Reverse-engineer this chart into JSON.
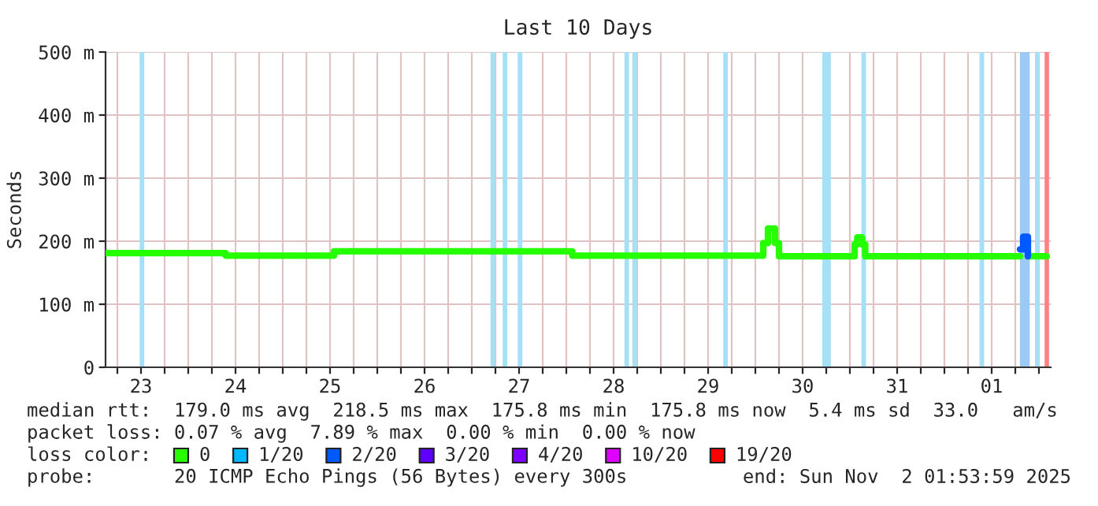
{
  "chart_data": {
    "type": "step",
    "title": "Last 10 Days",
    "ylabel": "Seconds",
    "xlim": [
      "2025-10-23T03:00",
      "2025-11-02T03:00"
    ],
    "xticks": [
      {
        "value": "2025-10-23T06:00",
        "label": null
      },
      {
        "value": "2025-10-23T12:00",
        "label": "23"
      },
      {
        "value": "2025-10-23T18:00",
        "label": null
      },
      {
        "value": "2025-10-24T00:00",
        "label": null
      },
      {
        "value": "2025-10-24T06:00",
        "label": null
      },
      {
        "value": "2025-10-24T12:00",
        "label": "24"
      },
      {
        "value": "2025-10-24T18:00",
        "label": null
      },
      {
        "value": "2025-10-25T00:00",
        "label": null
      },
      {
        "value": "2025-10-25T06:00",
        "label": null
      },
      {
        "value": "2025-10-25T12:00",
        "label": "25"
      },
      {
        "value": "2025-10-25T18:00",
        "label": null
      },
      {
        "value": "2025-10-26T00:00",
        "label": null
      },
      {
        "value": "2025-10-26T06:00",
        "label": null
      },
      {
        "value": "2025-10-26T12:00",
        "label": "26"
      },
      {
        "value": "2025-10-26T18:00",
        "label": null
      },
      {
        "value": "2025-10-27T00:00",
        "label": null
      },
      {
        "value": "2025-10-27T06:00",
        "label": null
      },
      {
        "value": "2025-10-27T12:00",
        "label": "27"
      },
      {
        "value": "2025-10-27T18:00",
        "label": null
      },
      {
        "value": "2025-10-28T00:00",
        "label": null
      },
      {
        "value": "2025-10-28T06:00",
        "label": null
      },
      {
        "value": "2025-10-28T12:00",
        "label": "28"
      },
      {
        "value": "2025-10-28T18:00",
        "label": null
      },
      {
        "value": "2025-10-29T00:00",
        "label": null
      },
      {
        "value": "2025-10-29T06:00",
        "label": null
      },
      {
        "value": "2025-10-29T12:00",
        "label": "29"
      },
      {
        "value": "2025-10-29T18:00",
        "label": null
      },
      {
        "value": "2025-10-30T00:00",
        "label": null
      },
      {
        "value": "2025-10-30T06:00",
        "label": null
      },
      {
        "value": "2025-10-30T12:00",
        "label": "30"
      },
      {
        "value": "2025-10-30T18:00",
        "label": null
      },
      {
        "value": "2025-10-31T00:00",
        "label": null
      },
      {
        "value": "2025-10-31T06:00",
        "label": null
      },
      {
        "value": "2025-10-31T12:00",
        "label": "31"
      },
      {
        "value": "2025-10-31T18:00",
        "label": null
      },
      {
        "value": "2025-11-01T00:00",
        "label": null
      },
      {
        "value": "2025-11-01T06:00",
        "label": null
      },
      {
        "value": "2025-11-01T12:00",
        "label": "01"
      },
      {
        "value": "2025-11-01T18:00",
        "label": null
      },
      {
        "value": "2025-11-02T00:00",
        "label": null
      }
    ],
    "ylim": [
      0,
      500
    ],
    "yticks": [
      {
        "value": 0,
        "label": "0"
      },
      {
        "value": 100,
        "label": "100 m"
      },
      {
        "value": 200,
        "label": "200 m"
      },
      {
        "value": 300,
        "label": "300 m"
      },
      {
        "value": 400,
        "label": "400 m"
      },
      {
        "value": 500,
        "label": "500 m"
      }
    ],
    "grid": true,
    "series": [
      {
        "color": "#26ff00",
        "x": [
          "2025-10-23T03:00",
          "2025-10-24T09:30",
          "2025-10-25T13:00",
          "2025-10-28T01:30",
          "2025-10-30T02:00",
          "2025-10-30T03:12",
          "2025-10-30T05:00",
          "2025-10-30T06:00",
          "2025-10-31T01:12",
          "2025-10-31T01:53",
          "2025-10-31T03:05",
          "2025-10-31T03:53",
          "2025-11-01T19:12",
          "2025-11-01T21:12",
          "2025-11-02T02:00"
        ],
        "values": [
          181,
          177,
          184,
          177,
          197,
          220,
          197,
          176,
          195,
          206,
          195,
          176,
          null,
          176,
          176
        ]
      },
      {
        "color": "#0059ff",
        "x": [
          "2025-11-01T19:12",
          "2025-11-01T20:00",
          "2025-11-01T21:12"
        ],
        "values": [
          187,
          207,
          176
        ]
      }
    ],
    "bands": [
      {
        "axis": "x",
        "from": "2025-10-23T11:40",
        "to": "2025-10-23T12:50",
        "color": "#a6e0f7"
      },
      {
        "axis": "x",
        "from": "2025-10-27T04:45",
        "to": "2025-10-27T05:55",
        "color": "#a6e0f7"
      },
      {
        "axis": "x",
        "from": "2025-10-27T07:50",
        "to": "2025-10-27T09:00",
        "color": "#a6e0f7"
      },
      {
        "axis": "x",
        "from": "2025-10-27T11:40",
        "to": "2025-10-27T12:50",
        "color": "#a6e0f7"
      },
      {
        "axis": "x",
        "from": "2025-10-28T14:45",
        "to": "2025-10-28T15:55",
        "color": "#a6e0f7"
      },
      {
        "axis": "x",
        "from": "2025-10-28T16:45",
        "to": "2025-10-28T17:55",
        "color": "#a6e0f7"
      },
      {
        "axis": "x",
        "from": "2025-10-29T15:50",
        "to": "2025-10-29T17:00",
        "color": "#a6e0f7"
      },
      {
        "axis": "x",
        "from": "2025-10-30T17:00",
        "to": "2025-10-30T19:10",
        "color": "#a6e0f7"
      },
      {
        "axis": "x",
        "from": "2025-10-31T02:55",
        "to": "2025-10-31T04:05",
        "color": "#a6e0f7"
      },
      {
        "axis": "x",
        "from": "2025-11-01T08:55",
        "to": "2025-11-01T10:05",
        "color": "#a6e0f7"
      },
      {
        "axis": "x",
        "from": "2025-11-01T19:10",
        "to": "2025-11-01T21:40",
        "color": "#9ccaf5"
      },
      {
        "axis": "x",
        "from": "2025-11-01T23:00",
        "to": "2025-11-02T00:10",
        "color": "#a6e0f7"
      }
    ],
    "ref_lines": [
      {
        "axis": "x",
        "value": "2025-11-02T02:00",
        "color": "#ff8080"
      }
    ],
    "annotations": [
      "median rtt:  179.0 ms avg  218.5 ms max  175.8 ms min  175.8 ms now  5.4 ms sd  33.0   am/s",
      "packet loss: 0.07 % avg  7.89 % max  0.00 % min  0.00 % now",
      "loss color:",
      "0",
      "1/20",
      "2/20",
      "3/20",
      "4/20",
      "10/20",
      "19/20",
      "probe:       20 ICMP Echo Pings (56 Bytes) every 300s",
      "end: Sun Nov  2 01:53:59 2025"
    ]
  }
}
